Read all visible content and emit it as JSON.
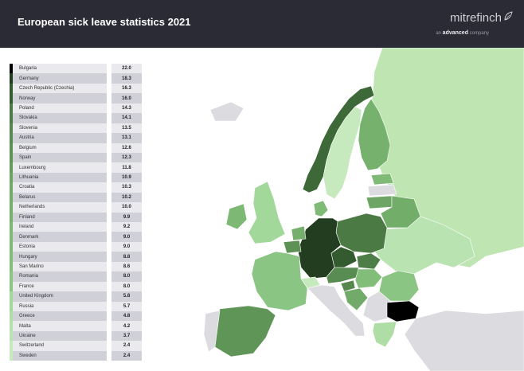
{
  "header": {
    "title": "European sick leave statistics 2021",
    "brand": "mitrefinch",
    "brand_prefix": "an",
    "brand_company": "advanced",
    "brand_suffix": "company"
  },
  "colors": {
    "header_bg": "#2b2b35",
    "land_nodata": "#dcdce0",
    "scale_low": "#bfe6b2",
    "scale_high": "#000000"
  },
  "legend": {
    "rows": [
      {
        "country": "Bulgaria",
        "value": "22.0",
        "color": "#000000"
      },
      {
        "country": "Germany",
        "value": "18.3",
        "color": "#233d20"
      },
      {
        "country": "Czech Republic (Czechia)",
        "value": "16.3",
        "color": "#345a30"
      },
      {
        "country": "Norway",
        "value": "16.0",
        "color": "#375e33"
      },
      {
        "country": "Poland",
        "value": "14.3",
        "color": "#4b7a45"
      },
      {
        "country": "Slovakia",
        "value": "14.1",
        "color": "#4e7e48"
      },
      {
        "country": "Slovenia",
        "value": "13.5",
        "color": "#55874e"
      },
      {
        "country": "Austria",
        "value": "13.1",
        "color": "#598c52"
      },
      {
        "country": "Belgium",
        "value": "12.6",
        "color": "#5d9156"
      },
      {
        "country": "Spain",
        "value": "12.3",
        "color": "#609558"
      },
      {
        "country": "Luxembourg",
        "value": "11.8",
        "color": "#659b5d"
      },
      {
        "country": "Lithuania",
        "value": "10.9",
        "color": "#6da564"
      },
      {
        "country": "Croatia",
        "value": "10.3",
        "color": "#72ab69"
      },
      {
        "country": "Belarus",
        "value": "10.2",
        "color": "#73ad6a"
      },
      {
        "country": "Netherlands",
        "value": "10.0",
        "color": "#75af6c"
      },
      {
        "country": "Finland",
        "value": "9.9",
        "color": "#77b16e"
      },
      {
        "country": "Ireland",
        "value": "9.2",
        "color": "#7db875"
      },
      {
        "country": "Denmark",
        "value": "9.0",
        "color": "#7fba77"
      },
      {
        "country": "Estonia",
        "value": "9.0",
        "color": "#7fba77"
      },
      {
        "country": "Hungary",
        "value": "8.8",
        "color": "#82bd7a"
      },
      {
        "country": "San Marino",
        "value": "8.6",
        "color": "#84bf7c"
      },
      {
        "country": "Romania",
        "value": "8.0",
        "color": "#8ac583"
      },
      {
        "country": "France",
        "value": "8.0",
        "color": "#8ac583"
      },
      {
        "country": "United Kingdom",
        "value": "5.8",
        "color": "#a2d89a"
      },
      {
        "country": "Russia",
        "value": "5.7",
        "color": "#a4d99c"
      },
      {
        "country": "Greece",
        "value": "4.8",
        "color": "#aedea5"
      },
      {
        "country": "Malta",
        "value": "4.2",
        "color": "#b4e1ab"
      },
      {
        "country": "Ukraine",
        "value": "3.7",
        "color": "#b9e3b0"
      },
      {
        "country": "Switzerland",
        "value": "2.4",
        "color": "#c6e9be"
      },
      {
        "country": "Sweden",
        "value": "2.4",
        "color": "#c6e9be"
      }
    ]
  }
}
